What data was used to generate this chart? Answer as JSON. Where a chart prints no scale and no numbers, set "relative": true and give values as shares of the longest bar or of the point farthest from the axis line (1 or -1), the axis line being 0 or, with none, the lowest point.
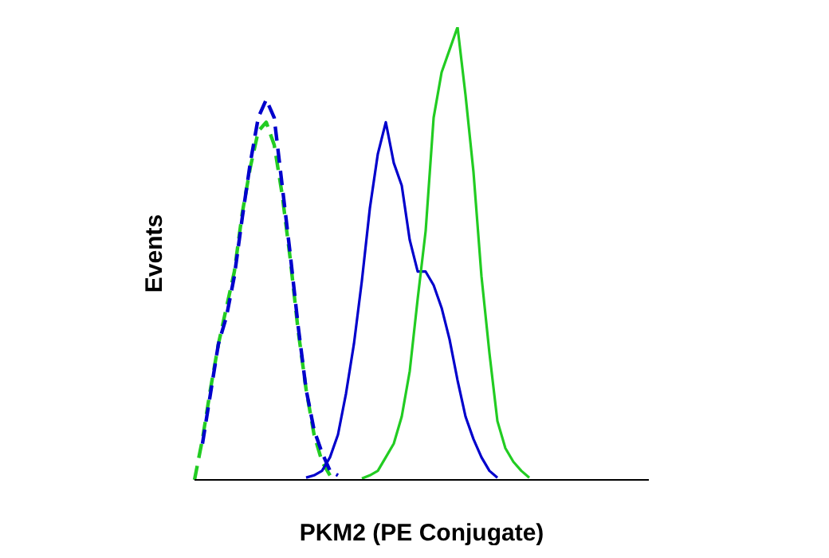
{
  "chart_data": {
    "type": "line",
    "xlabel": "PKM2 (PE Conjugate)",
    "ylabel": "Events",
    "relative": true,
    "tick_labels": false,
    "grid": false,
    "legend": false,
    "marker": "none",
    "categories": [
      null,
      null,
      null,
      null,
      null,
      null,
      null,
      null,
      null,
      null,
      null,
      null,
      null,
      null,
      null,
      null,
      null,
      null,
      null,
      null,
      null,
      null,
      null,
      null,
      null,
      null,
      null,
      null,
      null,
      null,
      null,
      null,
      null,
      null,
      null,
      null,
      null,
      null,
      null,
      null,
      null,
      null,
      null,
      null,
      null,
      null,
      null,
      null,
      null,
      null,
      null,
      null,
      null,
      null,
      null,
      null,
      null,
      null
    ],
    "series": [
      {
        "color": "#22cc22",
        "line_style": "dashed",
        "values": [
          0,
          0.09,
          0.2,
          0.3,
          0.38,
          0.46,
          0.59,
          0.69,
          0.77,
          0.79,
          0.74,
          0.63,
          0.49,
          0.33,
          0.2,
          0.1,
          0.04,
          0.01,
          null,
          null,
          null,
          null,
          null,
          null,
          null,
          null,
          null,
          null,
          null,
          null,
          null,
          null,
          null,
          null,
          null,
          null,
          null,
          null,
          null,
          null,
          null,
          null,
          null,
          null,
          null,
          null,
          null,
          null,
          null,
          null,
          null,
          null,
          null,
          null,
          null,
          null,
          null,
          null
        ]
      },
      {
        "color": "#0000cc",
        "line_style": "dashed",
        "values": [
          null,
          0.08,
          0.19,
          0.3,
          0.36,
          0.45,
          0.58,
          0.7,
          0.8,
          0.84,
          0.8,
          0.65,
          0.5,
          0.34,
          0.2,
          0.11,
          0.06,
          0.02,
          0.01,
          null,
          null,
          null,
          null,
          null,
          null,
          null,
          null,
          null,
          null,
          null,
          null,
          null,
          null,
          null,
          null,
          null,
          null,
          null,
          null,
          null,
          null,
          null,
          null,
          null,
          null,
          null,
          null,
          null,
          null,
          null,
          null,
          null,
          null,
          null,
          null,
          null,
          null,
          null
        ]
      },
      {
        "color": "#0000cc",
        "line_style": "solid",
        "values": [
          null,
          null,
          null,
          null,
          null,
          null,
          null,
          null,
          null,
          null,
          null,
          null,
          null,
          null,
          0.005,
          0.01,
          0.02,
          0.05,
          0.1,
          0.19,
          0.3,
          0.44,
          0.6,
          0.72,
          0.79,
          0.7,
          0.65,
          0.53,
          0.46,
          0.46,
          0.43,
          0.38,
          0.31,
          0.22,
          0.14,
          0.09,
          0.05,
          0.02,
          0.005,
          null,
          null,
          null,
          null,
          null,
          null,
          null,
          null,
          null,
          null,
          null,
          null,
          null,
          null,
          null,
          null,
          null,
          null,
          null
        ]
      },
      {
        "color": "#22cc22",
        "line_style": "solid",
        "values": [
          null,
          null,
          null,
          null,
          null,
          null,
          null,
          null,
          null,
          null,
          null,
          null,
          null,
          null,
          null,
          null,
          null,
          null,
          null,
          null,
          null,
          0.003,
          0.01,
          0.02,
          0.05,
          0.08,
          0.14,
          0.24,
          0.4,
          0.55,
          0.8,
          0.9,
          0.95,
          1.0,
          0.85,
          0.68,
          0.45,
          0.28,
          0.13,
          0.07,
          0.04,
          0.02,
          0.005,
          null,
          null,
          null,
          null,
          null,
          null,
          null,
          null,
          null,
          null,
          null,
          null,
          null,
          null,
          null
        ]
      }
    ]
  }
}
